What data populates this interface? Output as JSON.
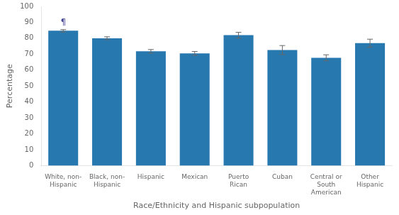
{
  "chart_data": {
    "type": "bar",
    "categories": [
      "White, non-\nHispanic",
      "Black, non-\nHispanic",
      "Hispanic",
      "Mexican",
      "Puerto\nRican",
      "Cuban",
      "Central or\nSouth\nAmerican",
      "Other\nHispanic"
    ],
    "values": [
      84.7,
      80.0,
      71.8,
      70.5,
      81.9,
      72.6,
      67.7,
      76.9
    ],
    "errors": [
      0.7,
      0.9,
      1.1,
      1.2,
      1.8,
      2.8,
      1.9,
      2.5
    ],
    "color": "#2878b0",
    "xlabel": "Race/Ethnicity and Hispanic subpopulation",
    "ylabel": "Percentage",
    "ylim": [
      0,
      100
    ],
    "yticks": [
      0,
      10,
      20,
      30,
      40,
      50,
      60,
      70,
      80,
      90,
      100
    ],
    "grid": false,
    "annotations": [
      {
        "text": "¶",
        "x": "White, non-\nHispanic",
        "y": 87.0,
        "color": "#4a4a9a"
      }
    ]
  }
}
